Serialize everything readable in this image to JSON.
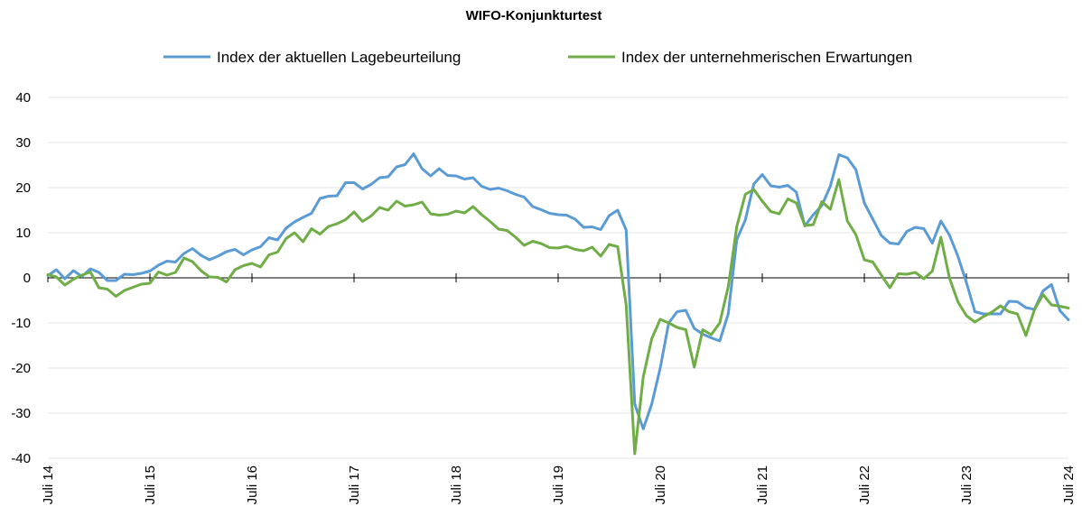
{
  "chart_data": {
    "type": "line",
    "title": "WIFO-Konjunkturtest",
    "xlabel": "",
    "ylabel": "",
    "ylim": [
      -40,
      40
    ],
    "yticks": [
      40,
      30,
      20,
      10,
      0,
      -10,
      -20,
      -30,
      -40
    ],
    "x_start": "2014-07",
    "x_end": "2024-07",
    "x_tick_labels": [
      "Juli 14",
      "Juli 15",
      "Juli 16",
      "Juli 17",
      "Juli 18",
      "Juli 19",
      "Juli 20",
      "Juli 21",
      "Juli 22",
      "Juli 23",
      "Juli 24"
    ],
    "grid": true,
    "legend_position": "top",
    "series": [
      {
        "name": "Index der aktuellen Lagebeurteilung",
        "color": "#5b9bd5",
        "values": [
          0.5,
          1.8,
          -0.2,
          1.6,
          0.3,
          2.0,
          1.2,
          -0.6,
          -0.6,
          0.8,
          0.7,
          1.0,
          1.5,
          2.8,
          3.7,
          3.5,
          5.4,
          6.5,
          5.0,
          4.0,
          4.8,
          5.8,
          6.3,
          5.1,
          6.2,
          6.9,
          8.9,
          8.4,
          11.0,
          12.4,
          13.4,
          14.3,
          17.6,
          18.1,
          18.2,
          21.1,
          21.1,
          19.7,
          20.7,
          22.2,
          22.4,
          24.6,
          25.1,
          27.5,
          24.2,
          22.6,
          24.2,
          22.7,
          22.6,
          21.9,
          22.2,
          20.3,
          19.6,
          19.9,
          19.3,
          18.5,
          17.9,
          15.8,
          15.1,
          14.3,
          14.0,
          13.9,
          13.0,
          11.2,
          11.3,
          10.7,
          13.8,
          15.0,
          10.6,
          -28.0,
          -33.5,
          -28.0,
          -20.0,
          -10.0,
          -7.5,
          -7.2,
          -11.2,
          -12.5,
          -13.3,
          -14.0,
          -8.0,
          8.5,
          12.8,
          20.8,
          22.9,
          20.4,
          20.1,
          20.5,
          19.0,
          11.5,
          14.0,
          16.0,
          20.3,
          27.3,
          26.6,
          24.0,
          16.6,
          13.0,
          9.4,
          7.7,
          7.5,
          10.3,
          11.2,
          10.9,
          7.7,
          12.6,
          9.5,
          4.8,
          -1.0,
          -7.5,
          -8.0,
          -8.0,
          -8.0,
          -5.2,
          -5.3,
          -6.6,
          -7.0,
          -2.9,
          -1.5,
          -7.3,
          -9.3
        ]
      },
      {
        "name": "Index der unternehmerischen Erwartungen",
        "color": "#70ad47",
        "values": [
          0.7,
          0.2,
          -1.6,
          -0.3,
          0.6,
          1.3,
          -2.2,
          -2.5,
          -4.1,
          -2.8,
          -2.1,
          -1.4,
          -1.2,
          1.3,
          0.6,
          1.2,
          4.4,
          3.6,
          1.6,
          0.2,
          0.1,
          -0.9,
          1.8,
          2.7,
          3.2,
          2.4,
          5.1,
          5.7,
          8.7,
          10.0,
          8.0,
          10.9,
          9.7,
          11.4,
          12.0,
          12.9,
          14.6,
          12.5,
          13.7,
          15.6,
          15.0,
          17.0,
          15.9,
          16.2,
          16.8,
          14.2,
          13.9,
          14.1,
          14.8,
          14.4,
          15.8,
          14.0,
          12.5,
          10.8,
          10.5,
          9.0,
          7.2,
          8.1,
          7.6,
          6.7,
          6.6,
          7.0,
          6.3,
          6.0,
          6.8,
          4.8,
          7.4,
          6.9,
          -6.0,
          -39.0,
          -22.0,
          -13.5,
          -9.2,
          -10.0,
          -11.0,
          -11.5,
          -19.8,
          -11.5,
          -12.6,
          -10.0,
          -2.0,
          11.4,
          18.5,
          19.6,
          17.0,
          14.7,
          14.2,
          17.5,
          16.6,
          11.6,
          11.8,
          16.9,
          15.2,
          21.8,
          12.6,
          9.6,
          4.0,
          3.5,
          0.6,
          -2.2,
          0.9,
          0.8,
          1.2,
          -0.2,
          1.5,
          9.0,
          0.0,
          -5.3,
          -8.4,
          -9.8,
          -8.6,
          -7.6,
          -6.2,
          -7.5,
          -8.0,
          -12.8,
          -7.1,
          -3.7,
          -6.0,
          -6.3,
          -6.7
        ]
      }
    ]
  }
}
